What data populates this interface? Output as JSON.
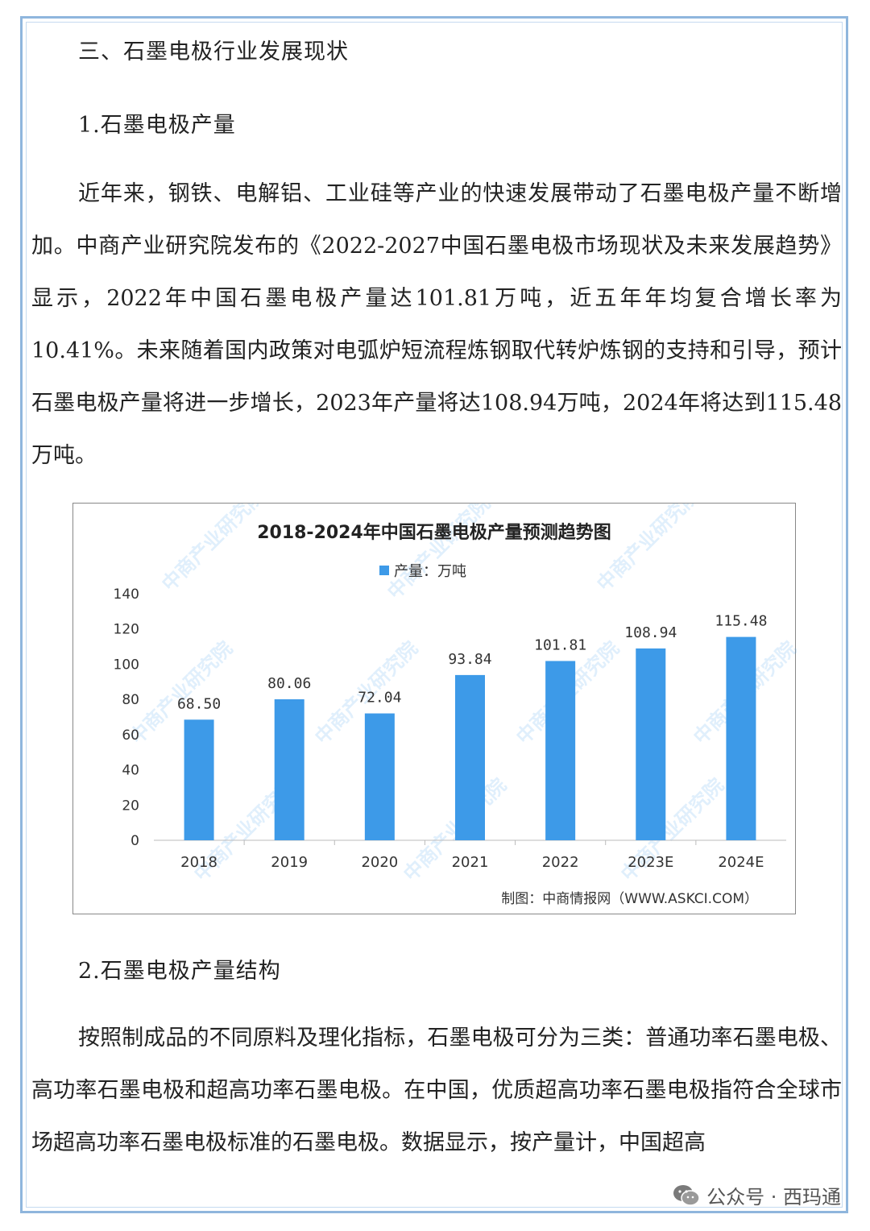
{
  "section_heading": "三、石墨电极行业发展现状",
  "subheading_1": "1.石墨电极产量",
  "paragraph_1": "近年来，钢铁、电解铝、工业硅等产业的快速发展带动了石墨电极产量不断增加。中商产业研究院发布的《2022-2027中国石墨电极市场现状及未来发展趋势》显示，2022年中国石墨电极产量达101.81万吨，近五年年均复合增长率为10.41%。未来随着国内政策对电弧炉短流程炼钢取代转炉炼钢的支持和引导，预计石墨电极产量将进一步增长，2023年产量将达108.94万吨，2024年将达到115.48万吨。",
  "subheading_2": "2.石墨电极产量结构",
  "paragraph_2": "按照制成品的不同原料及理化指标，石墨电极可分为三类：普通功率石墨电极、高功率石墨电极和超高功率石墨电极。在中国，优质超高功率石墨电极指符合全球市场超高功率石墨电极标准的石墨电极。数据显示，按产量计，中国超高",
  "chart_data": {
    "type": "bar",
    "title": "2018-2024年中国石墨电极产量预测趋势图",
    "categories": [
      "2018",
      "2019",
      "2020",
      "2021",
      "2022",
      "2023E",
      "2024E"
    ],
    "series": [
      {
        "name": "产量：万吨",
        "values": [
          68.5,
          80.06,
          72.04,
          93.84,
          101.81,
          108.94,
          115.48
        ]
      }
    ],
    "value_labels": [
      "68.50",
      "80.06",
      "72.04",
      "93.84",
      "101.81",
      "108.94",
      "115.48"
    ],
    "ylim": [
      0,
      140
    ],
    "yticks": [
      0,
      20,
      40,
      60,
      80,
      100,
      120,
      140
    ],
    "legend": "top-center",
    "grid": false,
    "bar_color": "#3d9ae8",
    "watermark": "中商产业研究院",
    "credit": "制图：中商情报网（WWW.ASKCI.COM）"
  },
  "footer": {
    "icon": "wechat-icon",
    "text": "公众号 · 西玛通"
  },
  "colors": {
    "frame": "#8fb6dd",
    "bar": "#3d9ae8"
  }
}
